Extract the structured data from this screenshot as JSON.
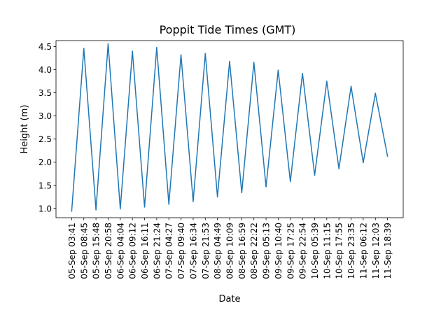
{
  "chart_data": {
    "type": "line",
    "title": "Poppit Tide Times (GMT)",
    "xlabel": "Date",
    "ylabel": "Height (m)",
    "ylim": [
      0.8,
      4.63
    ],
    "yticks": [
      "1.0",
      "1.5",
      "2.0",
      "2.5",
      "3.0",
      "3.5",
      "4.0",
      "4.5"
    ],
    "grid": false,
    "legend": "none",
    "line_color": "#1f77b4",
    "categories": [
      "05-Sep 03:41",
      "05-Sep 08:45",
      "05-Sep 15:48",
      "05-Sep 20:58",
      "06-Sep 04:04",
      "06-Sep 09:12",
      "06-Sep 16:11",
      "06-Sep 21:24",
      "07-Sep 04:27",
      "07-Sep 09:40",
      "07-Sep 16:34",
      "07-Sep 21:53",
      "08-Sep 04:49",
      "08-Sep 10:09",
      "08-Sep 16:59",
      "08-Sep 22:22",
      "09-Sep 05:13",
      "09-Sep 10:40",
      "09-Sep 17:25",
      "09-Sep 22:54",
      "10-Sep 05:39",
      "10-Sep 11:15",
      "10-Sep 17:55",
      "10-Sep 23:35",
      "11-Sep 06:12",
      "11-Sep 12:03",
      "11-Sep 18:39"
    ],
    "series": [
      {
        "values": [
          0.94,
          4.46,
          0.97,
          4.56,
          0.99,
          4.4,
          1.03,
          4.48,
          1.09,
          4.32,
          1.15,
          4.35,
          1.25,
          4.18,
          1.34,
          4.16,
          1.47,
          3.99,
          1.58,
          3.92,
          1.72,
          3.75,
          1.86,
          3.64,
          1.99,
          3.49,
          2.13
        ]
      }
    ]
  }
}
